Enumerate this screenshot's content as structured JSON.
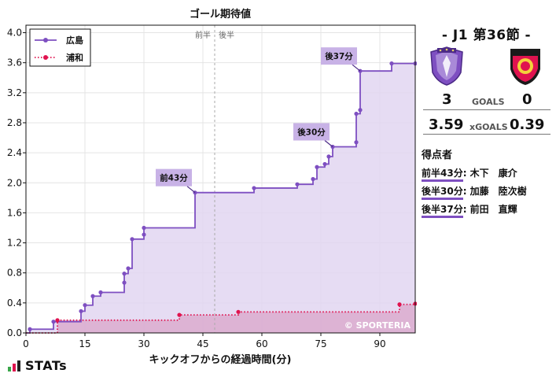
{
  "chart_data": {
    "type": "line",
    "step": true,
    "title": "ゴール期待値",
    "xlabel": "キックオフからの経過時間(分)",
    "ylabel": "",
    "xlim": [
      0,
      99
    ],
    "ylim": [
      0,
      4.1
    ],
    "x_ticks": [
      0,
      15,
      30,
      45,
      60,
      75,
      90
    ],
    "y_ticks": [
      0.0,
      0.4,
      0.8,
      1.2,
      1.6,
      2.0,
      2.4,
      2.8,
      3.2,
      3.6,
      4.0
    ],
    "y_tick_labels": [
      "0.0",
      "0.4",
      "0.8",
      "1.2",
      "1.6",
      "2.0",
      "2.4",
      "2.8",
      "3.2",
      "3.6",
      "4.0"
    ],
    "halftime_x": 48,
    "halftime_labels": [
      "前半",
      "後半"
    ],
    "grid": true,
    "legend_position": "top-left",
    "watermark": "© SPORTERIA",
    "series": [
      {
        "name": "広島",
        "color": "#7e4fc1",
        "fill": "#e2d6f1",
        "style": "solid",
        "points": [
          [
            1,
            0.05
          ],
          [
            7,
            0.15
          ],
          [
            14,
            0.29
          ],
          [
            15,
            0.37
          ],
          [
            17,
            0.49
          ],
          [
            19,
            0.54
          ],
          [
            25,
            0.67
          ],
          [
            25,
            0.79
          ],
          [
            26,
            0.86
          ],
          [
            27,
            1.25
          ],
          [
            30,
            1.31
          ],
          [
            30,
            1.4
          ],
          [
            43,
            1.87
          ],
          [
            58,
            1.93
          ],
          [
            69,
            1.98
          ],
          [
            73,
            2.05
          ],
          [
            74,
            2.21
          ],
          [
            76,
            2.25
          ],
          [
            77,
            2.35
          ],
          [
            78,
            2.48
          ],
          [
            84,
            2.54
          ],
          [
            84,
            2.92
          ],
          [
            85,
            2.97
          ],
          [
            85,
            3.49
          ],
          [
            93,
            3.59
          ],
          [
            99,
            3.59
          ]
        ]
      },
      {
        "name": "浦和",
        "color": "#e0134f",
        "fill": "#dcaed0",
        "style": "dotted",
        "points": [
          [
            8,
            0.17
          ],
          [
            39,
            0.24
          ],
          [
            54,
            0.28
          ],
          [
            95,
            0.38
          ],
          [
            99,
            0.39
          ]
        ]
      }
    ],
    "annotations": [
      {
        "label": "前43分",
        "x": 43,
        "y": 1.87
      },
      {
        "label": "後30分",
        "x": 78,
        "y": 2.48
      },
      {
        "label": "後37分",
        "x": 85,
        "y": 3.49
      }
    ]
  },
  "match": {
    "round": "-  J1 第36節  -",
    "home_goals": "3",
    "away_goals": "0",
    "goals_label": "GOALS",
    "home_xg": "3.59",
    "away_xg": "0.39",
    "xg_label": "xGOALS"
  },
  "scorers": {
    "title": "得点者",
    "list": [
      {
        "time": "前半43分",
        "name": ": 木下　康介"
      },
      {
        "time": "後半30分",
        "name": ": 加藤　陸次樹"
      },
      {
        "time": "後半37分",
        "name": ": 前田　直輝"
      }
    ]
  },
  "brand": {
    "logo_text": "STATs"
  },
  "colors": {
    "hiroshima": "#7e4fc1",
    "urawa": "#e0134f",
    "urawa_dark": "#1a1a1a"
  }
}
